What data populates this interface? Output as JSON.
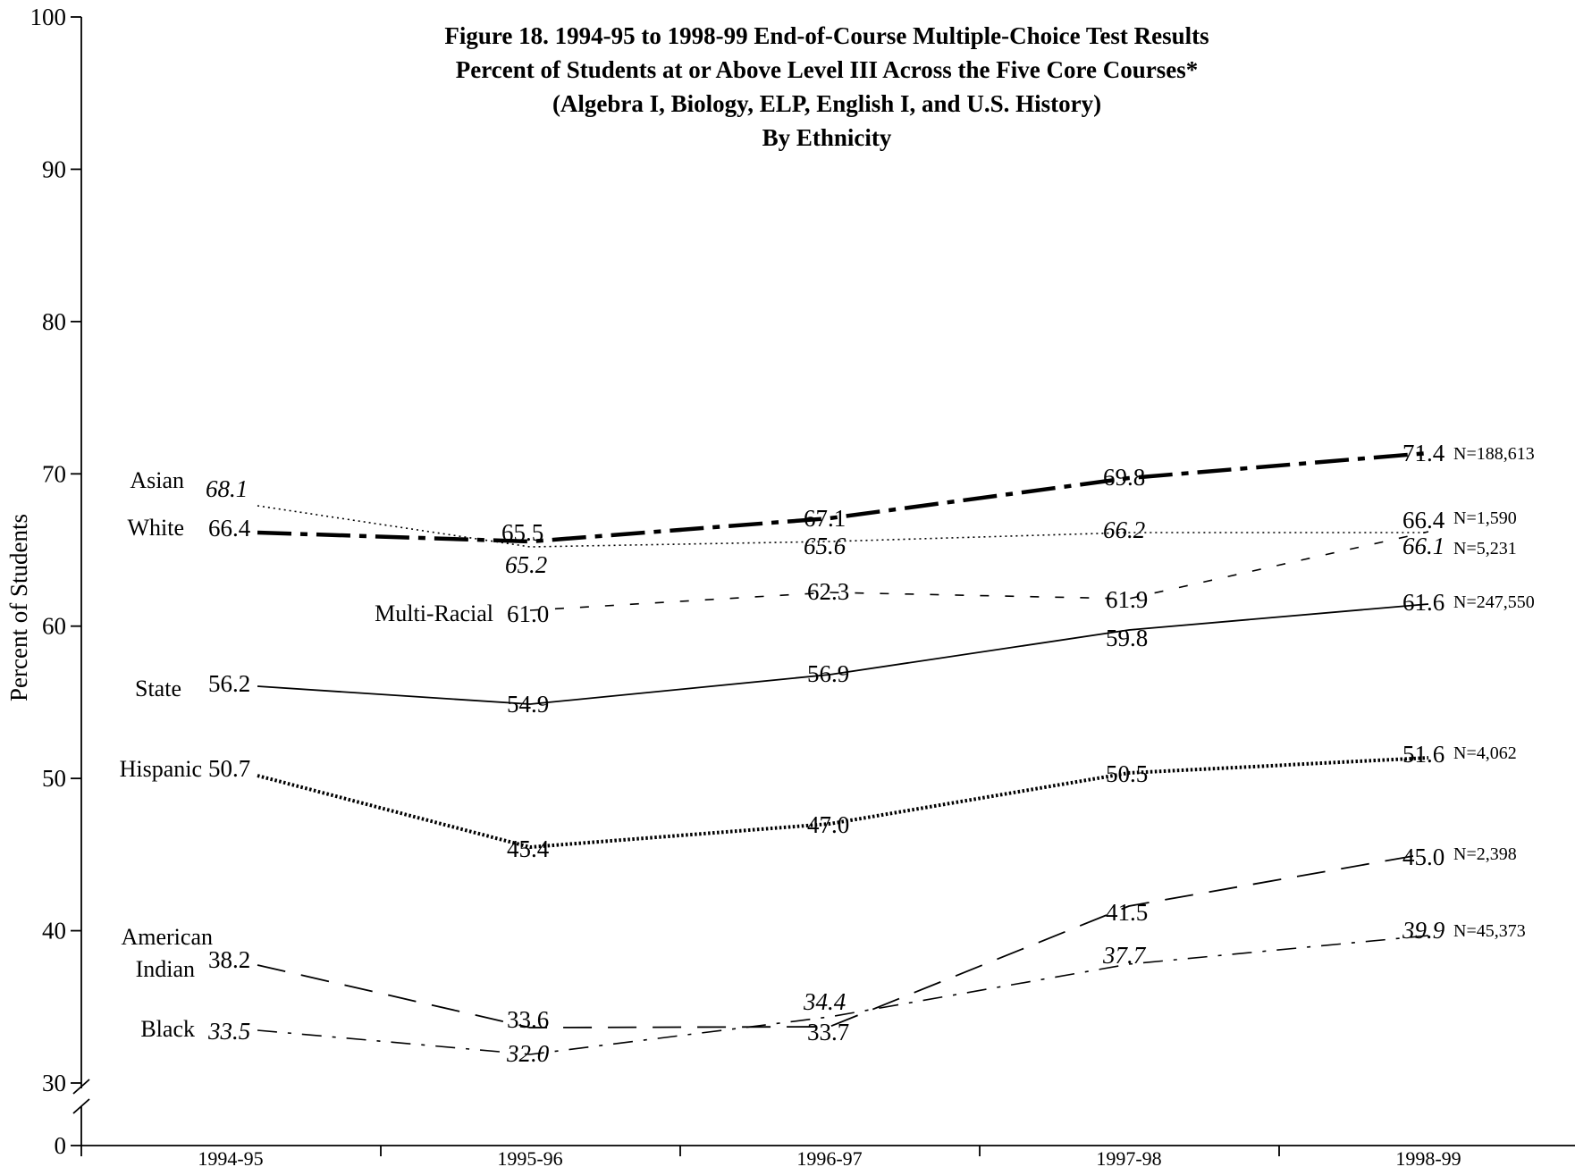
{
  "chart_data": {
    "type": "line",
    "title_lines": [
      "Figure 18.  1994-95 to 1998-99 End-of-Course Multiple-Choice Test Results",
      "Percent of Students at or Above Level III Across the Five Core Courses*",
      "(Algebra I, Biology, ELP, English I, and U.S. History)",
      "By Ethnicity"
    ],
    "ylabel": "Percent of Students",
    "xlabel": "",
    "categories": [
      "1994-95",
      "1995-96",
      "1996-97",
      "1997-98",
      "1998-99"
    ],
    "y_ticks": [
      "100",
      "90",
      "80",
      "70",
      "60",
      "50",
      "40",
      "30",
      "0"
    ],
    "ylim": [
      30,
      100
    ],
    "axis_break": {
      "from": 0,
      "to": 30
    },
    "grid": false,
    "series": [
      {
        "name": "White",
        "values": [
          66.4,
          65.5,
          67.1,
          69.8,
          71.4
        ],
        "labels": [
          "66.4",
          "65.5",
          "67.1",
          "69.8",
          "71.4"
        ],
        "n": "N=188,613",
        "style": "bold-dashdot",
        "italic": false,
        "name_lines": [
          "White"
        ]
      },
      {
        "name": "Asian",
        "values": [
          68.1,
          65.2,
          65.6,
          66.2,
          66.1
        ],
        "labels": [
          "68.1",
          "65.2",
          "65.6",
          "66.2",
          "66.1"
        ],
        "n": "N=5,231",
        "style": "dotted-thin",
        "italic": true,
        "name_lines": [
          "Asian"
        ]
      },
      {
        "name": "Multi-Racial",
        "values": [
          null,
          61.0,
          62.3,
          61.9,
          66.4
        ],
        "labels": [
          "",
          "61.0",
          "62.3",
          "61.9",
          "66.4"
        ],
        "n": "N=1,590",
        "style": "short-dash",
        "italic": false,
        "name_lines": [
          "Multi-Racial"
        ]
      },
      {
        "name": "State",
        "values": [
          56.2,
          54.9,
          56.9,
          59.8,
          61.6
        ],
        "labels": [
          "56.2",
          "54.9",
          "56.9",
          "59.8",
          "61.6"
        ],
        "n": "N=247,550",
        "style": "solid",
        "italic": false,
        "name_lines": [
          "State"
        ]
      },
      {
        "name": "Hispanic",
        "values": [
          50.7,
          45.4,
          47.0,
          50.5,
          51.6
        ],
        "labels": [
          "50.7",
          "45.4",
          "47.0",
          "50.5",
          "51.6"
        ],
        "n": "N=4,062",
        "style": "dotted-bold",
        "italic": false,
        "name_lines": [
          "Hispanic"
        ]
      },
      {
        "name": "American Indian",
        "values": [
          38.2,
          33.6,
          33.7,
          41.5,
          45.0
        ],
        "labels": [
          "38.2",
          "33.6",
          "33.7",
          "41.5",
          "45.0"
        ],
        "n": "N=2,398",
        "style": "long-dash",
        "italic": false,
        "name_lines": [
          "American",
          "Indian"
        ]
      },
      {
        "name": "Black",
        "values": [
          33.5,
          32.0,
          34.4,
          37.7,
          39.9
        ],
        "labels": [
          "33.5",
          "32.0",
          "34.4",
          "37.7",
          "39.9"
        ],
        "n": "N=45,373",
        "style": "dashdot-thin",
        "italic": true,
        "name_lines": [
          "Black"
        ]
      }
    ],
    "colors": {
      "line": "#000000",
      "background": "#ffffff"
    }
  }
}
